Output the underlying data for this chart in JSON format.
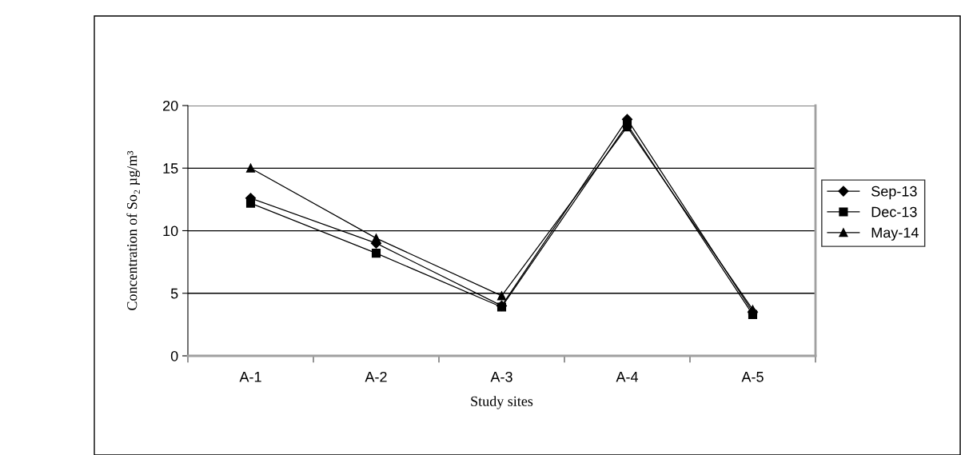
{
  "chart_data": {
    "type": "line",
    "xlabel": "Study sites",
    "ylabel": "Concentration of So₂ µg/m³",
    "categories": [
      "A-1",
      "A-2",
      "A-3",
      "A-4",
      "A-5"
    ],
    "series": [
      {
        "name": "Sep-13",
        "color": "#000000",
        "marker": "diamond",
        "values": [
          12.6,
          9.0,
          4.0,
          18.9,
          3.5
        ]
      },
      {
        "name": "Dec-13",
        "color": "#000000",
        "marker": "square",
        "values": [
          12.2,
          8.2,
          3.9,
          18.5,
          3.3
        ]
      },
      {
        "name": "May-14",
        "color": "#000000",
        "marker": "triangle",
        "values": [
          15.0,
          9.4,
          4.8,
          18.3,
          3.7
        ]
      }
    ],
    "ylim": [
      0,
      20
    ],
    "yticks": [
      0,
      5,
      10,
      15,
      20
    ],
    "grid": "y",
    "legend": "right",
    "line_style": "solid"
  }
}
